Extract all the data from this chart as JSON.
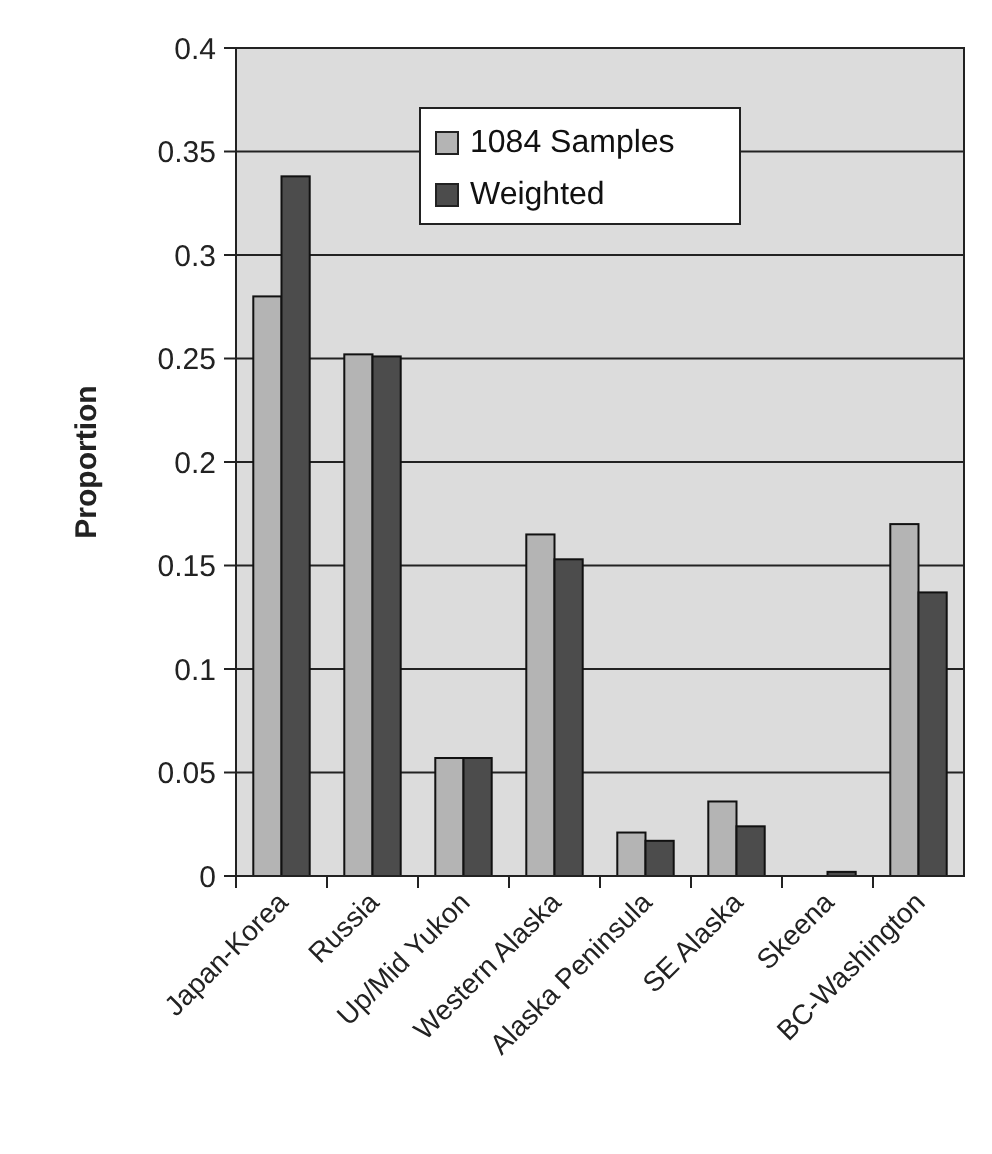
{
  "chart_data": {
    "type": "bar",
    "ylabel": "Proportion",
    "categories": [
      "Japan-Korea",
      "Russia",
      "Up/Mid Yukon",
      "Western Alaska",
      "Alaska Peninsula",
      "SE Alaska",
      "Skeena",
      "BC-Washington"
    ],
    "series": [
      {
        "name": "1084 Samples",
        "color": "#b4b4b4",
        "values": [
          0.28,
          0.252,
          0.057,
          0.165,
          0.021,
          0.036,
          0,
          0.17
        ]
      },
      {
        "name": "Weighted",
        "color": "#4c4c4c",
        "values": [
          0.338,
          0.251,
          0.057,
          0.153,
          0.017,
          0.024,
          0.002,
          0.137
        ]
      }
    ],
    "ylim": [
      0,
      0.4
    ],
    "yticks": [
      0,
      0.05,
      0.1,
      0.15,
      0.2,
      0.25,
      0.3,
      0.35,
      0.4
    ],
    "grid": "y",
    "legend": "top"
  }
}
